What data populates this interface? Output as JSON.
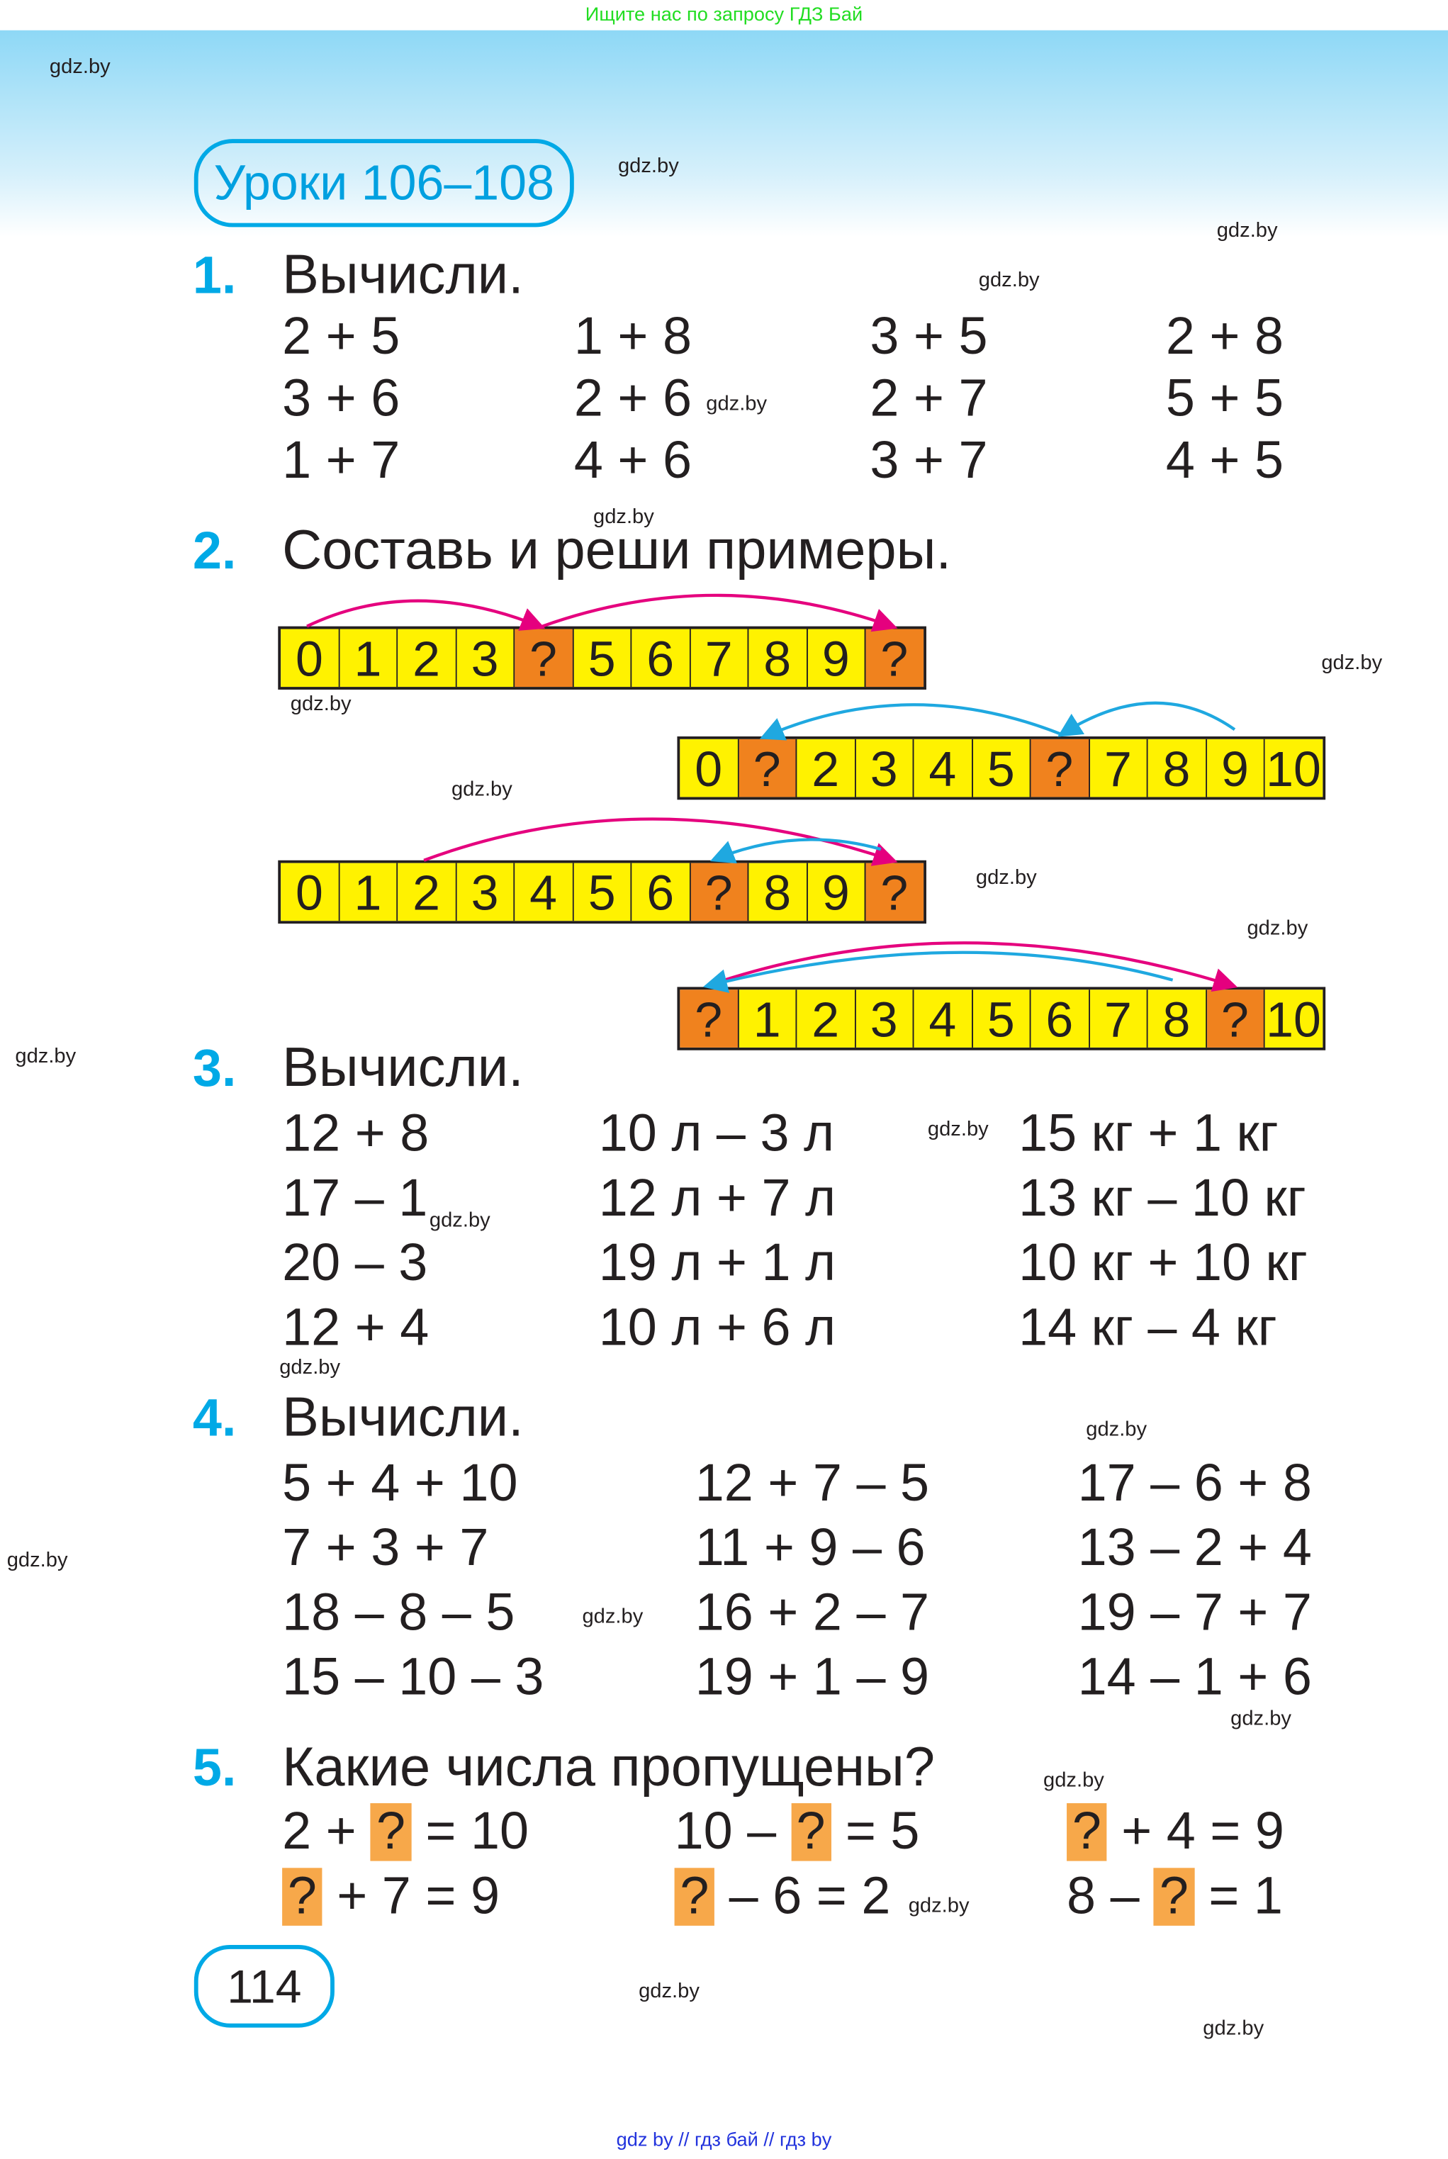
{
  "ad_top": "Ищите нас по запросу ГДЗ Бай",
  "ad_bottom": "gdz by  //  гдз бай  //  гдз by",
  "title": "Уроки 106–108",
  "page_number": "114",
  "watermarks": [
    "gdz.by",
    "gdz.by",
    "gdz.by",
    "gdz.by",
    "gdz.by",
    "gdz.by",
    "gdz.by",
    "gdz.by",
    "gdz.by",
    "gdz.by",
    "gdz.by",
    "gdz.by",
    "gdz.by",
    "gdz.by",
    "gdz.by",
    "gdz.by",
    "gdz.by",
    "gdz.by",
    "gdz.by",
    "gdz.by",
    "gdz.by",
    "gdz.by",
    "gdz.by"
  ],
  "colors": {
    "accent": "#00a9e6",
    "cell": "#fff200",
    "cell_missing": "#f0821e",
    "magenta_arrow": "#e5007e",
    "cyan_arrow": "#1fa8e0"
  },
  "task1": {
    "number": "1.",
    "heading": "Вычисли.",
    "columns": [
      [
        "2 + 5",
        "3 + 6",
        "1 + 7"
      ],
      [
        "1 + 8",
        "2 + 6",
        "4 + 6"
      ],
      [
        "3 + 5",
        "2 + 7",
        "3 + 7"
      ],
      [
        "2 + 8",
        "5 + 5",
        "4 + 5"
      ]
    ]
  },
  "task2": {
    "number": "2.",
    "heading": "Составь и реши примеры.",
    "lines": [
      [
        "0",
        "1",
        "2",
        "3",
        "?",
        "5",
        "6",
        "7",
        "8",
        "9",
        "?"
      ],
      [
        "0",
        "?",
        "2",
        "3",
        "4",
        "5",
        "?",
        "7",
        "8",
        "9",
        "10"
      ],
      [
        "0",
        "1",
        "2",
        "3",
        "4",
        "5",
        "6",
        "?",
        "8",
        "9",
        "?"
      ],
      [
        "?",
        "1",
        "2",
        "3",
        "4",
        "5",
        "6",
        "7",
        "8",
        "?",
        "10"
      ]
    ]
  },
  "task3": {
    "number": "3.",
    "heading": "Вычисли.",
    "columns": [
      [
        "12 + 8",
        "17 – 1",
        "20 – 3",
        "12 + 4"
      ],
      [
        "10 л – 3 л",
        "12 л + 7 л",
        "19 л + 1 л",
        "10 л + 6 л"
      ],
      [
        "15 кг + 1 кг",
        "13 кг – 10 кг",
        "10 кг + 10 кг",
        "14 кг – 4 кг"
      ]
    ]
  },
  "task4": {
    "number": "4.",
    "heading": "Вычисли.",
    "columns": [
      [
        "5 + 4 + 10",
        "7 + 3 + 7",
        "18 – 8 – 5",
        "15 – 10 – 3"
      ],
      [
        "12 + 7 – 5",
        "11 + 9 – 6",
        "16 + 2 – 7",
        "19 + 1 – 9"
      ],
      [
        "17 – 6 + 8",
        "13 – 2 + 4",
        "19 – 7 + 7",
        "14 – 1 + 6"
      ]
    ]
  },
  "task5": {
    "number": "5.",
    "heading": "Какие числа пропущены?",
    "rows": [
      [
        [
          "2 + ",
          "?",
          " = 10"
        ],
        [
          "10 – ",
          "?",
          " = 5"
        ],
        [
          "",
          "?",
          " + 4 = 9"
        ]
      ],
      [
        [
          "",
          "?",
          " + 7 = 9"
        ],
        [
          "",
          "?",
          " – 6 = 2"
        ],
        [
          "8 – ",
          "?",
          " = 1"
        ]
      ]
    ]
  }
}
